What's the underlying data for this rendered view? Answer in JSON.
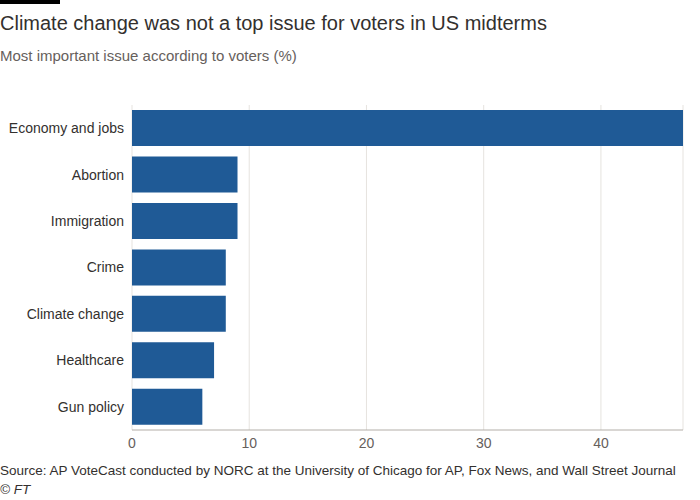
{
  "chart_data": {
    "type": "bar",
    "orientation": "horizontal",
    "title": "Climate change was not a top issue for voters in US midterms",
    "subtitle": "Most important issue according to voters (%)",
    "source": "Source: AP VoteCast conducted by NORC at the University of Chicago for AP, Fox News, and Wall Street Journal",
    "copyright": "© FT",
    "categories": [
      "Economy and jobs",
      "Abortion",
      "Immigration",
      "Crime",
      "Climate change",
      "Healthcare",
      "Gun policy"
    ],
    "values": [
      47,
      9,
      9,
      8,
      8,
      7,
      6
    ],
    "color": "#1f5a96",
    "xlim": [
      0,
      47
    ],
    "xticks": [
      0,
      10,
      20,
      30,
      40
    ],
    "grid": true
  }
}
